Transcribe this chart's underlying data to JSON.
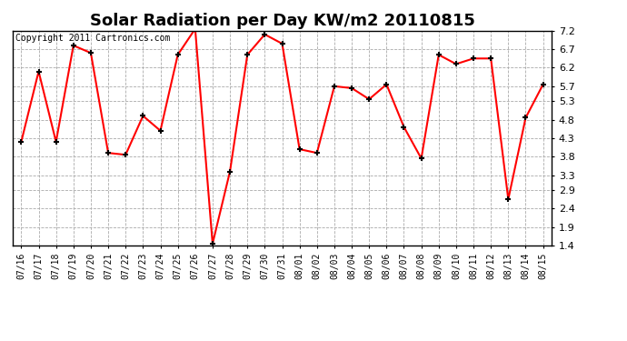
{
  "title": "Solar Radiation per Day KW/m2 20110815",
  "copyright": "Copyright 2011 Cartronics.com",
  "dates": [
    "07/16",
    "07/17",
    "07/18",
    "07/19",
    "07/20",
    "07/21",
    "07/22",
    "07/23",
    "07/24",
    "07/25",
    "07/26",
    "07/27",
    "07/28",
    "07/29",
    "07/30",
    "07/31",
    "08/01",
    "08/02",
    "08/03",
    "08/04",
    "08/05",
    "08/06",
    "08/07",
    "08/08",
    "08/09",
    "08/10",
    "08/11",
    "08/12",
    "08/13",
    "08/14",
    "08/15"
  ],
  "values": [
    4.2,
    6.1,
    4.2,
    6.8,
    6.6,
    3.9,
    3.85,
    4.9,
    4.5,
    6.55,
    7.25,
    1.45,
    3.4,
    6.55,
    7.1,
    6.85,
    4.0,
    3.9,
    5.7,
    5.65,
    5.35,
    5.75,
    4.6,
    3.75,
    6.55,
    6.3,
    6.45,
    6.45,
    2.65,
    4.85,
    5.75
  ],
  "line_color": "#ff0000",
  "marker": "+",
  "marker_size": 5,
  "marker_color": "#000000",
  "ylim": [
    1.4,
    7.2
  ],
  "yticks": [
    1.4,
    1.9,
    2.4,
    2.9,
    3.3,
    3.8,
    4.3,
    4.8,
    5.3,
    5.7,
    6.2,
    6.7,
    7.2
  ],
  "bg_color": "#ffffff",
  "grid_color": "#aaaaaa",
  "title_fontsize": 13,
  "copyright_fontsize": 7,
  "xtick_fontsize": 7,
  "ytick_fontsize": 8
}
